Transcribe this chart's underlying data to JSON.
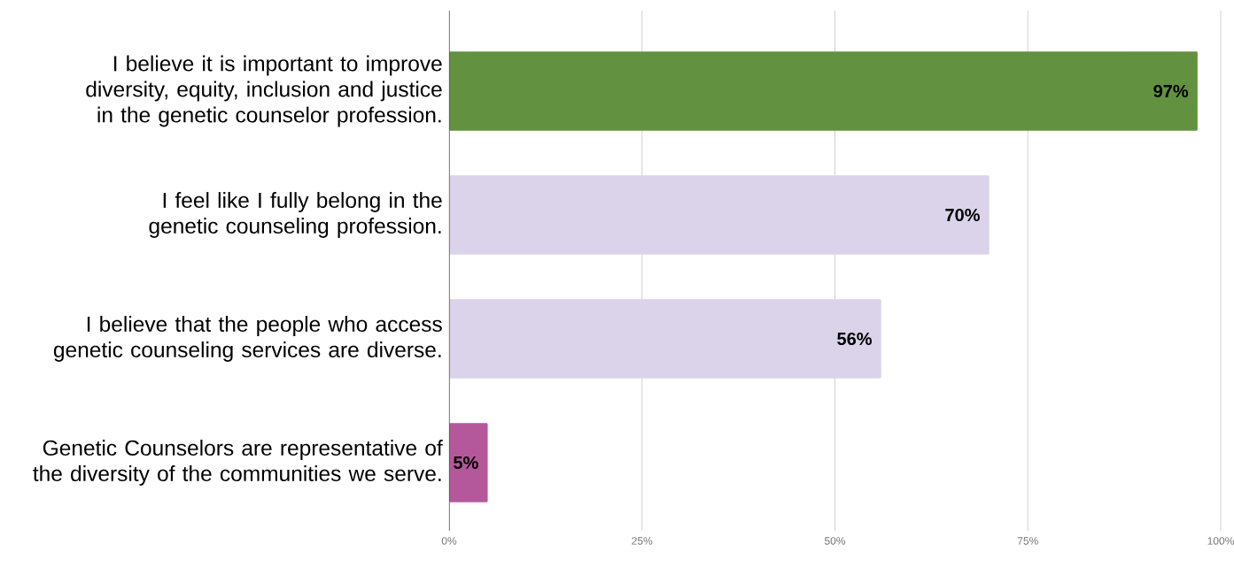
{
  "chart_data": {
    "type": "bar",
    "orientation": "horizontal",
    "categories": [
      "I believe it is important to improve diversity, equity, inclusion and justice in the genetic counselor profession.",
      "I feel like I fully belong in the genetic counseling profession.",
      "I believe that the people who access genetic counseling services are diverse.",
      "Genetic Counselors are representative of the diversity of the communities we serve."
    ],
    "values": [
      97,
      70,
      56,
      5
    ],
    "colors": [
      "#62923f",
      "#dad3ea",
      "#dad3ea",
      "#b5589b"
    ],
    "value_labels": [
      "97%",
      "70%",
      "56%",
      "5%"
    ],
    "xlim": [
      0,
      100
    ],
    "xticks": [
      {
        "value": 0,
        "label": "0%"
      },
      {
        "value": 25,
        "label": "25%"
      },
      {
        "value": 50,
        "label": "50%"
      },
      {
        "value": 75,
        "label": "75%"
      },
      {
        "value": 100,
        "label": "100%"
      }
    ],
    "grid": "x"
  }
}
